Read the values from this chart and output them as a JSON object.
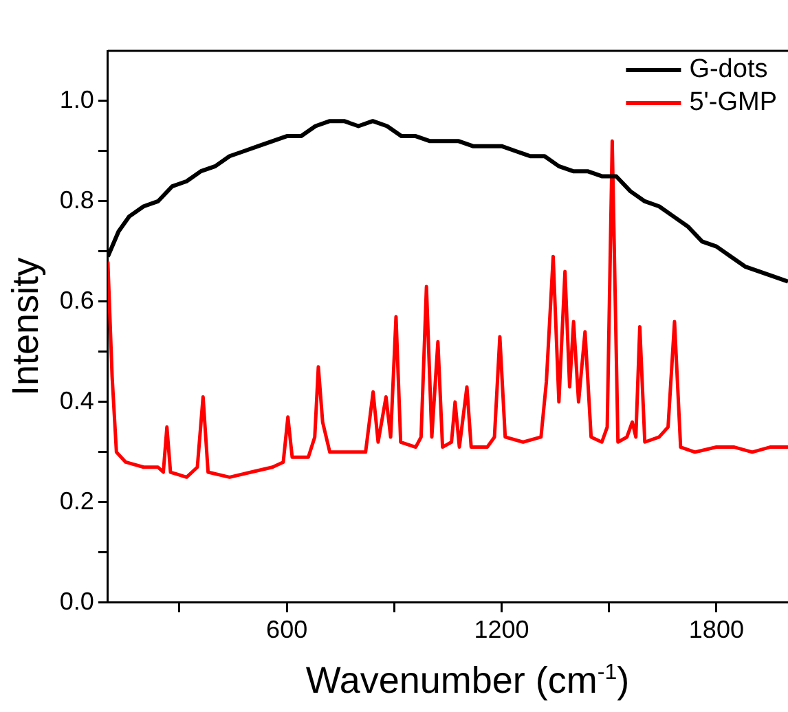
{
  "chart_data": {
    "type": "line",
    "xlabel": "Wavenumber (cm$^{-1}$)",
    "ylabel": "Intensity",
    "xlim": [
      100,
      2000
    ],
    "ylim": [
      0,
      1.1
    ],
    "xticks": [
      {
        "value": 300,
        "label": null
      },
      600,
      {
        "value": 900,
        "label": null
      },
      1200,
      {
        "value": 1500,
        "label": null
      },
      1800
    ],
    "yticks": [
      {
        "value": 0,
        "label": "0.0"
      },
      {
        "value": 0.1,
        "label": null
      },
      0.2,
      {
        "value": 0.3,
        "label": null
      },
      0.4,
      {
        "value": 0.5,
        "label": null
      },
      0.6,
      {
        "value": 0.7,
        "label": null
      },
      0.8,
      {
        "value": 0.9,
        "label": null
      },
      {
        "value": 1,
        "label": "1.0"
      }
    ],
    "grid": false,
    "legend": "top right",
    "marker": "none",
    "line_style": "solid",
    "series": [
      {
        "name": "G-dots",
        "color": "#000000",
        "x": [
          100,
          130,
          160,
          200,
          240,
          280,
          320,
          360,
          400,
          440,
          480,
          520,
          560,
          600,
          640,
          680,
          720,
          760,
          800,
          840,
          880,
          920,
          960,
          1000,
          1040,
          1080,
          1120,
          1160,
          1200,
          1240,
          1280,
          1320,
          1360,
          1400,
          1440,
          1480,
          1520,
          1560,
          1600,
          1640,
          1680,
          1720,
          1760,
          1800,
          1840,
          1880,
          1920,
          1960,
          2000
        ],
        "values": [
          0.69,
          0.74,
          0.77,
          0.79,
          0.8,
          0.83,
          0.84,
          0.86,
          0.87,
          0.89,
          0.9,
          0.91,
          0.92,
          0.93,
          0.93,
          0.95,
          0.96,
          0.96,
          0.95,
          0.96,
          0.95,
          0.93,
          0.93,
          0.92,
          0.92,
          0.92,
          0.91,
          0.91,
          0.91,
          0.9,
          0.89,
          0.89,
          0.87,
          0.86,
          0.86,
          0.85,
          0.85,
          0.82,
          0.8,
          0.79,
          0.77,
          0.75,
          0.72,
          0.71,
          0.69,
          0.67,
          0.66,
          0.65,
          0.64
        ]
      },
      {
        "name": "5'-GMP",
        "color": "#ff0000",
        "x": [
          100,
          112,
          124,
          150,
          200,
          240,
          255,
          265,
          275,
          320,
          350,
          366,
          380,
          440,
          500,
          560,
          590,
          603,
          615,
          660,
          678,
          688,
          700,
          720,
          780,
          820,
          841,
          855,
          877,
          890,
          905,
          918,
          960,
          975,
          990,
          1005,
          1022,
          1035,
          1060,
          1070,
          1082,
          1103,
          1115,
          1160,
          1180,
          1195,
          1210,
          1260,
          1310,
          1325,
          1344,
          1360,
          1377,
          1390,
          1401,
          1415,
          1433,
          1450,
          1480,
          1495,
          1509,
          1525,
          1550,
          1565,
          1575,
          1586,
          1600,
          1640,
          1665,
          1683,
          1700,
          1740,
          1800,
          1850,
          1900,
          1950,
          2000
        ],
        "values": [
          0.68,
          0.45,
          0.3,
          0.28,
          0.27,
          0.27,
          0.26,
          0.35,
          0.26,
          0.25,
          0.27,
          0.41,
          0.26,
          0.25,
          0.26,
          0.27,
          0.28,
          0.37,
          0.29,
          0.29,
          0.33,
          0.47,
          0.36,
          0.3,
          0.3,
          0.3,
          0.42,
          0.32,
          0.41,
          0.33,
          0.57,
          0.32,
          0.31,
          0.33,
          0.63,
          0.33,
          0.52,
          0.31,
          0.32,
          0.4,
          0.31,
          0.43,
          0.31,
          0.31,
          0.33,
          0.53,
          0.33,
          0.32,
          0.33,
          0.44,
          0.69,
          0.4,
          0.66,
          0.43,
          0.56,
          0.4,
          0.54,
          0.33,
          0.32,
          0.35,
          0.92,
          0.32,
          0.33,
          0.36,
          0.33,
          0.55,
          0.32,
          0.33,
          0.35,
          0.56,
          0.31,
          0.3,
          0.31,
          0.31,
          0.3,
          0.31,
          0.31
        ]
      }
    ]
  }
}
